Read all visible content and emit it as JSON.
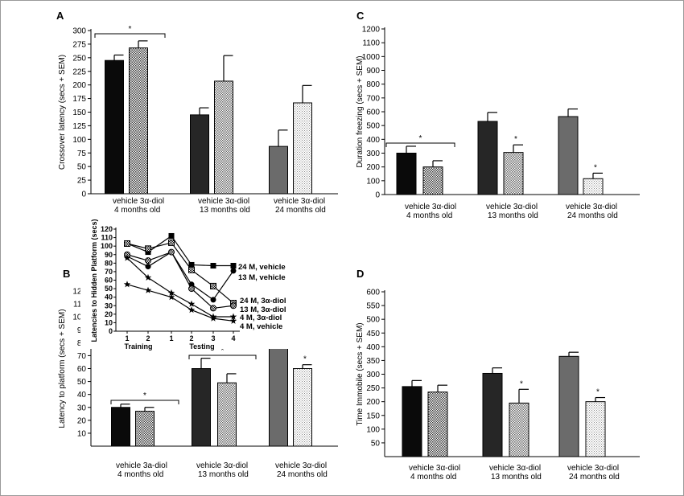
{
  "chart_data": [
    {
      "panel": "A",
      "type": "bar",
      "ylabel": "Crossover latency (secs + SEM)",
      "ylim": [
        0,
        300
      ],
      "yticks": [
        0,
        25,
        50,
        75,
        100,
        125,
        150,
        175,
        200,
        225,
        250,
        275,
        300
      ],
      "groups": [
        {
          "labels": "vehicle 3α-diol",
          "age": "4 months old",
          "bars": [
            {
              "treatment": "vehicle",
              "value": 245,
              "sem": 10
            },
            {
              "treatment": "3α-diol",
              "value": 268,
              "sem": 13
            }
          ]
        },
        {
          "labels": "vehicle 3α-diol",
          "age": "13 months old",
          "bars": [
            {
              "treatment": "vehicle",
              "value": 145,
              "sem": 13
            },
            {
              "treatment": "3α-diol",
              "value": 207,
              "sem": 47
            }
          ]
        },
        {
          "labels": "vehicle 3α-diol",
          "age": "24 months old",
          "bars": [
            {
              "treatment": "vehicle",
              "value": 87,
              "sem": 30
            },
            {
              "treatment": "3α-diol",
              "value": 167,
              "sem": 32
            }
          ]
        }
      ],
      "significance": [
        {
          "text": "*",
          "group": 0,
          "bracket": true
        }
      ]
    },
    {
      "panel": "B",
      "type": "bar",
      "ylabel": "Latency to platform (secs + SEM)",
      "ylim": [
        0,
        120
      ],
      "yticks": [
        10,
        20,
        30,
        40,
        50,
        60,
        70,
        80,
        90,
        100,
        110,
        120
      ],
      "groups": [
        {
          "labels": "vehicle 3a-diol",
          "age": "4 months old",
          "bars": [
            {
              "treatment": "vehicle",
              "value": 30,
              "sem": 2.5
            },
            {
              "treatment": "3α-diol",
              "value": 27,
              "sem": 3
            }
          ]
        },
        {
          "labels": "vehicle 3α-diol",
          "age": "13 months old",
          "bars": [
            {
              "treatment": "vehicle",
              "value": 60,
              "sem": 8
            },
            {
              "treatment": "3α-diol",
              "value": 49,
              "sem": 7
            }
          ]
        },
        {
          "labels": "vehicle 3α-diol",
          "age": "24 months old",
          "bars": [
            {
              "treatment": "vehicle",
              "value": 80,
              "sem": 9
            },
            {
              "treatment": "3α-diol",
              "value": 60,
              "sem": 3
            }
          ]
        }
      ],
      "significance": [
        {
          "text": "*",
          "group": 0,
          "bracket": true
        },
        {
          "text": "*",
          "group": 1,
          "bracket": true
        },
        {
          "text": "*",
          "group": 2,
          "bracket": false
        }
      ]
    },
    {
      "panel": "B-inset",
      "type": "line",
      "ylabel": "Latencies to Hidden Platform (secs)",
      "ylim": [
        0,
        120
      ],
      "yticks": [
        0,
        10,
        20,
        30,
        40,
        50,
        60,
        70,
        80,
        90,
        100,
        110,
        120
      ],
      "x": [
        "1",
        "2",
        "1",
        "2",
        "3",
        "4"
      ],
      "xgroups": [
        "Training",
        "Testing"
      ],
      "series": [
        {
          "name": "24 M, vehicle",
          "marker": "square",
          "values": [
            103,
            93,
            112,
            78,
            77,
            77
          ]
        },
        {
          "name": "13 M, vehicle",
          "marker": "circle",
          "values": [
            88,
            76,
            93,
            55,
            37,
            71
          ]
        },
        {
          "name": "24 M, 3α-diol",
          "marker": "sq-hatch",
          "values": [
            103,
            97,
            104,
            72,
            53,
            33
          ]
        },
        {
          "name": "13 M, 3α-diol",
          "marker": "circle-hatch",
          "values": [
            90,
            83,
            93,
            50,
            27,
            30
          ]
        },
        {
          "name": "4 M, 3α-diol",
          "marker": "star",
          "values": [
            86,
            63,
            45,
            32,
            17,
            17
          ]
        },
        {
          "name": "4 M, vehicle",
          "marker": "star",
          "values": [
            55,
            48,
            40,
            25,
            15,
            12
          ]
        }
      ]
    },
    {
      "panel": "C",
      "type": "bar",
      "ylabel": "Duration freezing (secs + SEM)",
      "ylim": [
        0,
        1200
      ],
      "yticks": [
        0,
        100,
        200,
        300,
        400,
        500,
        600,
        700,
        800,
        900,
        1000,
        1100,
        1200
      ],
      "groups": [
        {
          "labels": "vehicle 3α-diol",
          "age": "4 months old",
          "bars": [
            {
              "treatment": "vehicle",
              "value": 300,
              "sem": 50
            },
            {
              "treatment": "3α-diol",
              "value": 200,
              "sem": 45
            }
          ]
        },
        {
          "labels": "vehicle 3α-diol",
          "age": "13 months old",
          "bars": [
            {
              "treatment": "vehicle",
              "value": 530,
              "sem": 65
            },
            {
              "treatment": "3α-diol",
              "value": 305,
              "sem": 55
            }
          ]
        },
        {
          "labels": "vehicle 3α-diol",
          "age": "24 months old",
          "bars": [
            {
              "treatment": "vehicle",
              "value": 565,
              "sem": 55
            },
            {
              "treatment": "3α-diol",
              "value": 115,
              "sem": 40
            }
          ]
        }
      ],
      "significance": [
        {
          "text": "*",
          "group": 0,
          "bracket": true
        },
        {
          "text": "*",
          "group": 1,
          "bracket": false
        },
        {
          "text": "*",
          "group": 2,
          "bracket": false
        }
      ]
    },
    {
      "panel": "D",
      "type": "bar",
      "ylabel": "Time Immobile (secs + SEM)",
      "ylim": [
        0,
        600
      ],
      "yticks": [
        50,
        100,
        150,
        200,
        250,
        300,
        350,
        400,
        450,
        500,
        550,
        600
      ],
      "groups": [
        {
          "labels": "vehicle 3α-diol",
          "age": "4 months old",
          "bars": [
            {
              "treatment": "vehicle",
              "value": 255,
              "sem": 22
            },
            {
              "treatment": "3α-diol",
              "value": 235,
              "sem": 25
            }
          ]
        },
        {
          "labels": "vehicle 3α-diol",
          "age": "13 months old",
          "bars": [
            {
              "treatment": "vehicle",
              "value": 303,
              "sem": 20
            },
            {
              "treatment": "3α-diol",
              "value": 195,
              "sem": 50
            }
          ]
        },
        {
          "labels": "vehicle 3α-diol",
          "age": "24 months old",
          "bars": [
            {
              "treatment": "vehicle",
              "value": 365,
              "sem": 15
            },
            {
              "treatment": "3α-diol",
              "value": 200,
              "sem": 15
            }
          ]
        }
      ],
      "significance": [
        {
          "text": "*",
          "group": 1,
          "bracket": false
        },
        {
          "text": "*",
          "group": 2,
          "bracket": false
        }
      ]
    }
  ],
  "colors": {
    "age4": "#0a0a0a",
    "age13": "#262626",
    "age24": "#6b6b6b",
    "hatch4": "#555555",
    "hatch13": "#7a7a7a",
    "hatch24": "#a8a8a8"
  }
}
